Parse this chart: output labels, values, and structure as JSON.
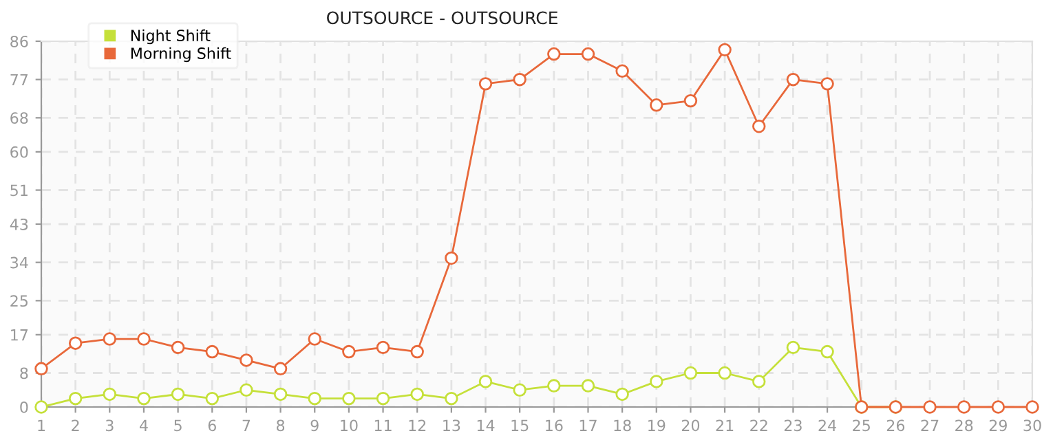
{
  "chart_data": {
    "type": "line",
    "title": "OUTSOURCE - OUTSOURCE",
    "x": [
      1,
      2,
      3,
      4,
      5,
      6,
      7,
      8,
      9,
      10,
      11,
      12,
      13,
      14,
      15,
      16,
      17,
      18,
      19,
      20,
      21,
      22,
      23,
      24,
      25,
      26,
      27,
      28,
      29,
      30
    ],
    "series": [
      {
        "name": "Night Shift",
        "color": "#c5e03a",
        "values": [
          0,
          2,
          3,
          2,
          3,
          2,
          4,
          3,
          2,
          2,
          2,
          3,
          2,
          6,
          4,
          5,
          5,
          3,
          6,
          8,
          8,
          6,
          14,
          13,
          0,
          0,
          null,
          null,
          null,
          null
        ]
      },
      {
        "name": "Morning Shift",
        "color": "#e8683a",
        "values": [
          9,
          15,
          16,
          16,
          14,
          13,
          11,
          9,
          16,
          13,
          14,
          13,
          35,
          76,
          77,
          83,
          83,
          79,
          71,
          72,
          84,
          66,
          77,
          76,
          0,
          0,
          0,
          0,
          0,
          0
        ]
      }
    ],
    "xlim": [
      1,
      30
    ],
    "xticks": [
      1,
      2,
      3,
      4,
      5,
      6,
      7,
      8,
      9,
      10,
      11,
      12,
      13,
      14,
      15,
      16,
      17,
      18,
      19,
      20,
      21,
      22,
      23,
      24,
      25,
      26,
      27,
      28,
      29,
      30
    ],
    "ylim": [
      0,
      86
    ],
    "yticks": [
      0,
      8,
      17,
      25,
      34,
      43,
      51,
      60,
      68,
      77,
      86
    ],
    "grid": true,
    "legend": "top left",
    "marker": "circle",
    "line_style": "solid"
  }
}
